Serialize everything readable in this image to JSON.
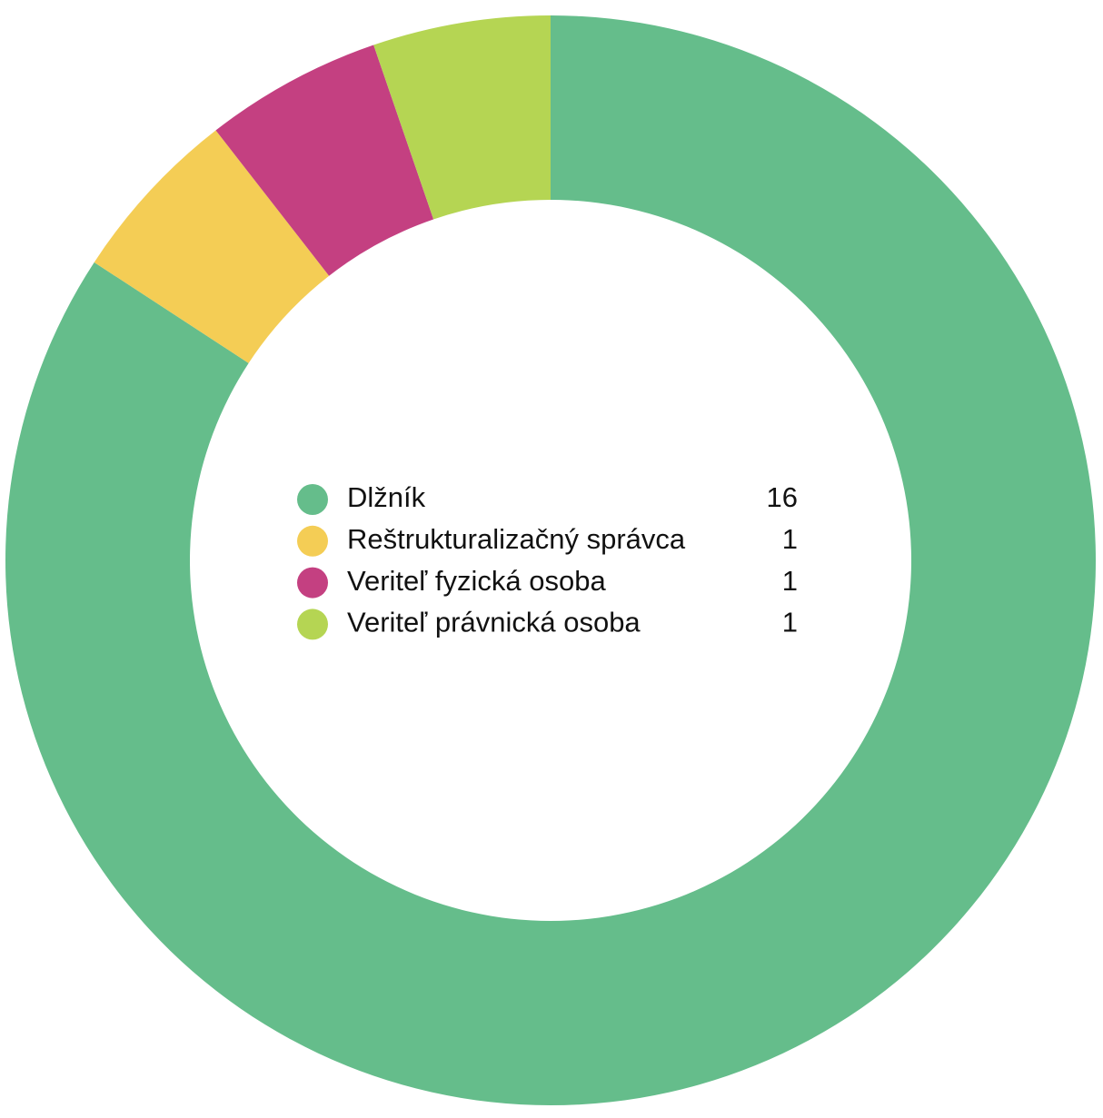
{
  "chart_data": {
    "type": "donut",
    "categories": [
      "Dlžník",
      "Reštrukturalizačný správca",
      "Veriteľ fyzická osoba",
      "Veriteľ právnická osoba"
    ],
    "values": [
      16,
      1,
      1,
      1
    ],
    "colors": [
      "#65bd8b",
      "#f4cd55",
      "#c44081",
      "#b5d553"
    ]
  }
}
